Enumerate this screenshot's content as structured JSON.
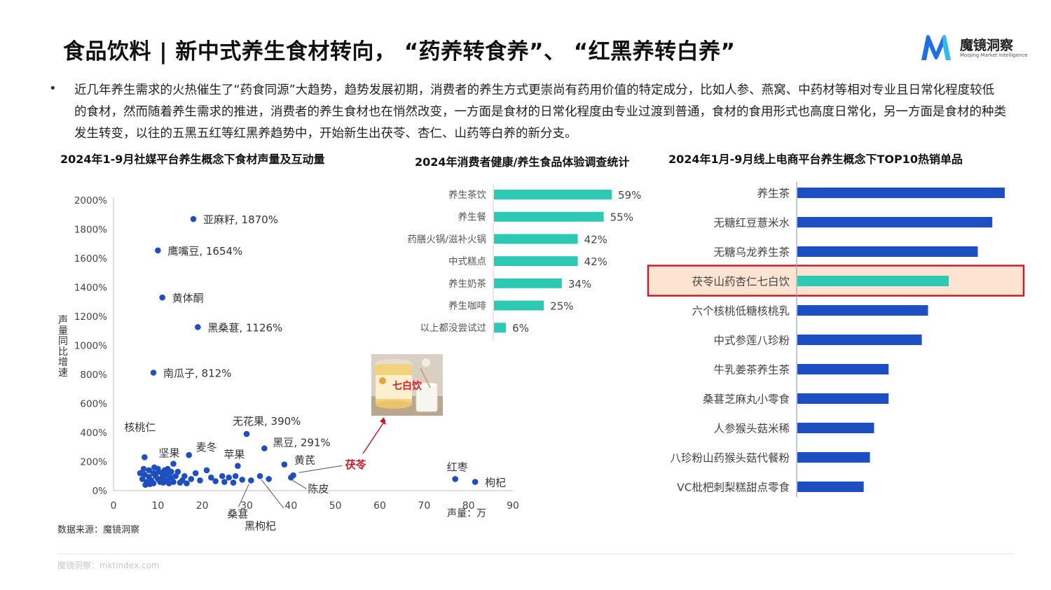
{
  "header": {
    "title": "食品饮料 | 新中式养生食材转向， “药养转食养”、 “红黑养转白养”",
    "logo_text": "魔镜洞察",
    "logo_subtext": "Moojing Market Intelligence"
  },
  "intro": {
    "bullet": "•",
    "text": "近几年养生需求的火热催生了“药食同源”大趋势，趋势发展初期，消费者的养生方式更崇尚有药用价值的特定成分，比如人参、燕窝、中药材等相对专业且日常化程度较低的食材，然而随着养生需求的推进，消费者的养生食材也在悄然改变，一方面是食材的日常化程度由专业过渡到普通，食材的食用形式也高度日常化，另一方面是食材的种类发生转变，以往的五黑五红等红黑养趋势中，开始新生出茯苓、杏仁、山药等白养的新分支。"
  },
  "colors": {
    "scatter_point": "#1f4fbf",
    "highlight_red": "#c0202a",
    "bar_teal": "#2ec9b4",
    "bar_blue": "#1e4fc2",
    "highlight_fill": "#fde3d2"
  },
  "chart_data": [
    {
      "type": "scatter",
      "title": "2024年1-9月社媒平台养生概念下食材声量及互动量",
      "xlabel": "声量：万",
      "ylabel": "声量同比增速",
      "xlim": [
        0,
        90
      ],
      "ylim": [
        0,
        2000
      ],
      "xticks": [
        "0",
        "10",
        "20",
        "30",
        "40",
        "50",
        "60",
        "70",
        "80",
        "90"
      ],
      "yticks": [
        "0%",
        "200%",
        "400%",
        "600%",
        "800%",
        "1000%",
        "1200%",
        "1400%",
        "1600%",
        "1800%",
        "2000%"
      ],
      "labeled_points": [
        {
          "label": "亚麻籽, 1870%",
          "x": 18,
          "y": 1870
        },
        {
          "label": "鹰嘴豆, 1654%",
          "x": 10,
          "y": 1654
        },
        {
          "label": "黄体酮",
          "x": 11,
          "y": 1330
        },
        {
          "label": "黑桑葚, 1126%",
          "x": 19,
          "y": 1126
        },
        {
          "label": "南瓜子, 812%",
          "x": 9,
          "y": 812
        },
        {
          "label": "无花果, 390%",
          "x": 30,
          "y": 390
        },
        {
          "label": "黑豆, 291%",
          "x": 34,
          "y": 291
        },
        {
          "label": "核桃仁",
          "x": 7,
          "y": 230
        },
        {
          "label": "坚果",
          "x": 13.5,
          "y": 185
        },
        {
          "label": "麦冬",
          "x": 17,
          "y": 245
        },
        {
          "label": "苹果",
          "x": 28,
          "y": 170
        },
        {
          "label": "黄芪",
          "x": 38.5,
          "y": 180
        },
        {
          "label": "茯苓",
          "x": 40.5,
          "y": 105
        },
        {
          "label": "陈皮",
          "x": 40,
          "y": 90
        },
        {
          "label": "桑葚",
          "x": 31,
          "y": 70
        },
        {
          "label": "黑枸杞",
          "x": 33,
          "y": 100
        },
        {
          "label": "红枣",
          "x": 77,
          "y": 80
        },
        {
          "label": "枸杞",
          "x": 81.5,
          "y": 60
        }
      ],
      "cluster_points": [
        [
          6.5,
          80
        ],
        [
          7,
          110
        ],
        [
          7.5,
          60
        ],
        [
          8,
          140
        ],
        [
          8,
          95
        ],
        [
          8.5,
          70
        ],
        [
          9,
          120
        ],
        [
          9,
          50
        ],
        [
          9.5,
          100
        ],
        [
          10,
          80
        ],
        [
          10,
          150
        ],
        [
          10.5,
          60
        ],
        [
          11,
          120
        ],
        [
          11,
          90
        ],
        [
          11.5,
          140
        ],
        [
          12,
          70
        ],
        [
          12,
          110
        ],
        [
          12.5,
          50
        ],
        [
          13,
          130
        ],
        [
          13,
          90
        ],
        [
          13.5,
          60
        ],
        [
          14,
          100
        ],
        [
          6,
          120
        ],
        [
          6.8,
          150
        ],
        [
          7.2,
          40
        ],
        [
          8.2,
          45
        ],
        [
          9.2,
          160
        ],
        [
          10.2,
          130
        ],
        [
          11.2,
          55
        ],
        [
          12.2,
          150
        ],
        [
          14.5,
          130
        ],
        [
          15.5,
          70
        ],
        [
          16,
          100
        ],
        [
          16.5,
          50
        ],
        [
          17.5,
          80
        ],
        [
          18.5,
          120
        ],
        [
          19.5,
          70
        ],
        [
          21,
          140
        ],
        [
          22,
          90
        ],
        [
          23,
          65
        ],
        [
          24.5,
          100
        ],
        [
          25,
          60
        ],
        [
          26,
          90
        ],
        [
          27,
          55
        ],
        [
          27.5,
          100
        ],
        [
          29,
          75
        ],
        [
          35,
          80
        ],
        [
          15,
          55
        ]
      ]
    },
    {
      "type": "bar",
      "orientation": "horizontal",
      "title": "2024年消费者健康/养生食品体验调查统计",
      "categories": [
        "养生茶饮",
        "养生餐",
        "药膳火锅/滋补火锅",
        "中式糕点",
        "养生奶茶",
        "养生咖啡",
        "以上都没尝试过"
      ],
      "values": [
        59,
        55,
        42,
        42,
        34,
        25,
        6
      ],
      "value_labels": [
        "59%",
        "55%",
        "42%",
        "42%",
        "34%",
        "25%",
        "6%"
      ]
    },
    {
      "type": "bar",
      "orientation": "horizontal",
      "title": "2024年1月-9月线上电商平台养生概念下TOP10热销单品",
      "categories": [
        "养生茶",
        "无糖红豆薏米水",
        "无糖乌龙养生茶",
        "茯苓山药杏仁七白饮",
        "六个核桃低糖核桃乳",
        "中式参莲八珍粉",
        "牛乳姜茶养生茶",
        "桑葚芝麻丸小零食",
        "人参猴头菇米稀",
        "八珍粉山药猴头菇代餐粉",
        "VC枇杷刺梨糕甜点零食"
      ],
      "values": [
        100,
        94,
        87,
        73,
        63,
        60,
        44,
        44,
        37,
        35,
        32
      ],
      "highlight_index": 3
    }
  ],
  "product_image": {
    "label": "七白饮"
  },
  "source": "数据来源：魔镜洞察",
  "footer": "魔镜洞察：mktindex.com"
}
